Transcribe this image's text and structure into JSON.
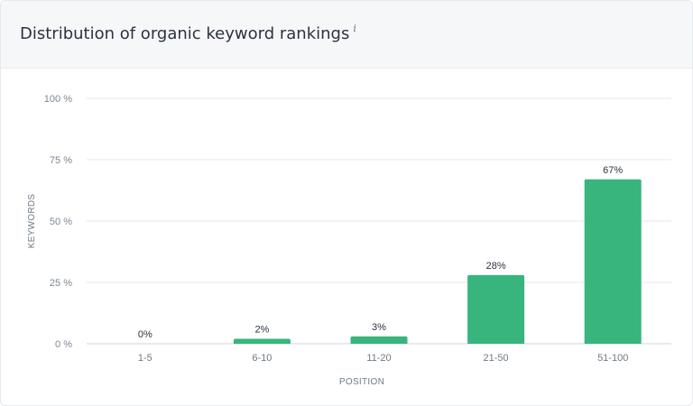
{
  "card": {
    "title": "Distribution of organic keyword rankings",
    "info_icon": "i"
  },
  "chart_data": {
    "type": "bar",
    "categories": [
      "1-5",
      "6-10",
      "11-20",
      "21-50",
      "51-100"
    ],
    "values": [
      0,
      2,
      3,
      28,
      67
    ],
    "data_labels": [
      "0%",
      "2%",
      "3%",
      "28%",
      "67%"
    ],
    "xlabel": "POSITION",
    "ylabel": "KEYWORDS",
    "ylim": [
      0,
      100
    ],
    "yticks": [
      0,
      25,
      50,
      75,
      100
    ],
    "ytick_labels": [
      "0 %",
      "25 %",
      "50 %",
      "75 %",
      "100 %"
    ],
    "grid": true,
    "legend": "none",
    "bar_color": "#37b57c",
    "grid_color": "#e4e7eb"
  }
}
